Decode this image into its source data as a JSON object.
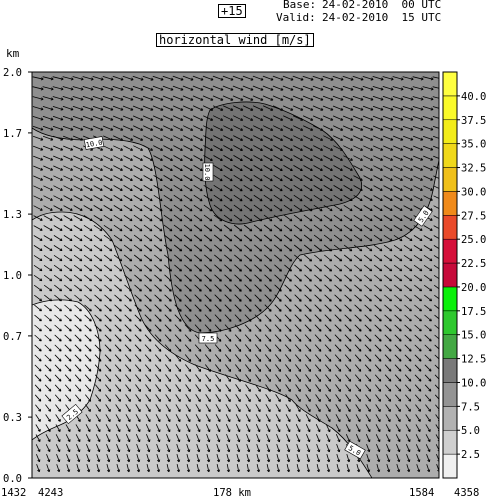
{
  "header": {
    "step_label": "+15",
    "base_label": "Base:",
    "base_value": "24-02-2010  00 UTC",
    "valid_label": "Valid:",
    "valid_value": "24-02-2010  15 UTC"
  },
  "chart_data": {
    "type": "heatmap",
    "title": "horizontal wind [m/s]",
    "ylabel": "km",
    "y_ticks": [
      "0.0",
      "0.3",
      "0.7",
      "1.0",
      "1.3",
      "1.7",
      "2.0"
    ],
    "ylim": [
      0.0,
      2.0
    ],
    "x_labels": {
      "left_start": "1432",
      "left_end": "4243",
      "center": "178 km",
      "right_start": "1584",
      "right_end": "4358"
    },
    "colorbar": {
      "levels": [
        "2.5",
        "5.0",
        "7.5",
        "10.0",
        "12.5",
        "15.0",
        "17.5",
        "20.0",
        "22.5",
        "25.0",
        "27.5",
        "30.0",
        "32.5",
        "35.0",
        "37.5",
        "40.0"
      ],
      "colors": [
        "#f0f0f0",
        "#cfcfcf",
        "#b2b2b2",
        "#949494",
        "#7a7a7a",
        "#43a843",
        "#2ec82e",
        "#0bf00b",
        "#c60a3a",
        "#d6103a",
        "#ea4a2a",
        "#f08a1a",
        "#f0c01a",
        "#f0d81a",
        "#f3ec1a",
        "#fafa2a",
        "#ffff40"
      ]
    },
    "contour_labels": [
      "10.0",
      "10.0",
      "5.0",
      "5.0",
      "7.5",
      "2.5",
      "10.0"
    ],
    "fill_colors": {
      "lt_2_5": "#e8e8e8",
      "2_5_to_5": "#cacaca",
      "5_to_7_5": "#adadad",
      "7_5_to_10": "#8f8f8f",
      "gt_10": "#747474"
    }
  }
}
